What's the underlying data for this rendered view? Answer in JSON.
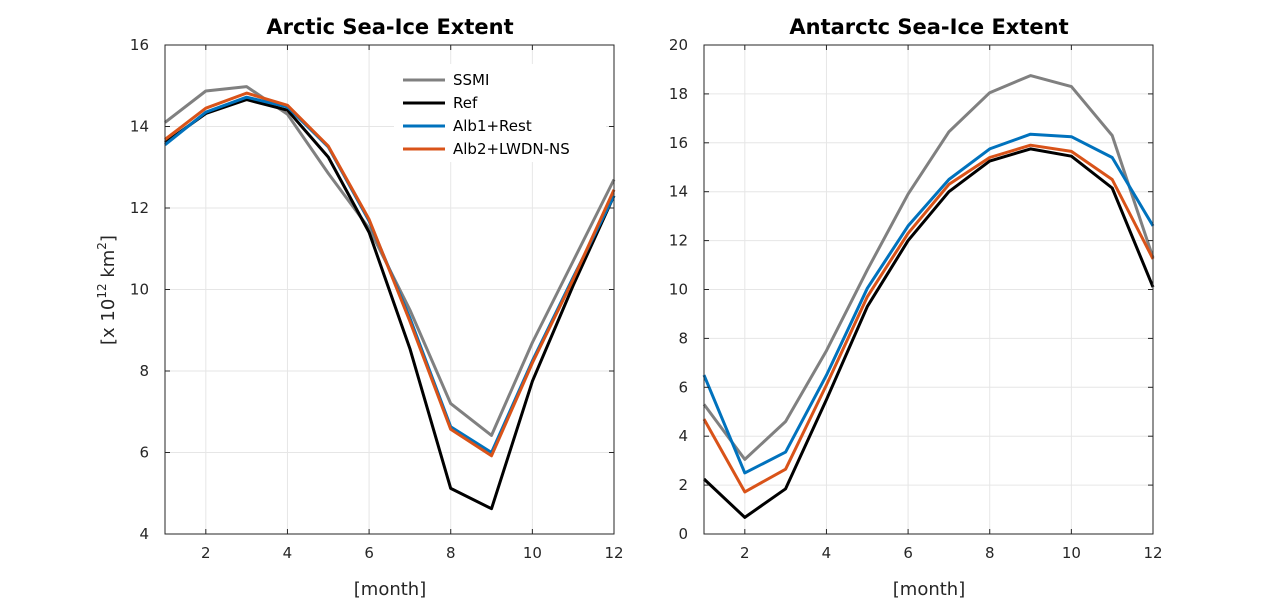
{
  "figure": {
    "ylabel_prefix": "[x 10",
    "ylabel_exp": "12",
    "ylabel_unit": " km",
    "ylabel_unit_exp": "2",
    "ylabel_suffix": "]"
  },
  "chart_data": [
    {
      "type": "line",
      "title": "Arctic Sea-Ice Extent",
      "xlabel": "[month]",
      "ylabel": "[x 10^12 km^2]",
      "xlim": [
        1,
        12
      ],
      "ylim": [
        4,
        16
      ],
      "xticks": [
        2,
        4,
        6,
        8,
        10,
        12
      ],
      "yticks": [
        4,
        6,
        8,
        10,
        12,
        14,
        16
      ],
      "grid": true,
      "legend": "top-right",
      "x": [
        1,
        2,
        3,
        4,
        5,
        6,
        7,
        8,
        9,
        10,
        11,
        12
      ],
      "series": [
        {
          "name": "SSMI",
          "color": "#808080",
          "values": [
            14.1,
            14.87,
            14.98,
            14.3,
            12.85,
            11.5,
            9.5,
            7.2,
            6.42,
            8.7,
            10.7,
            12.7
          ]
        },
        {
          "name": "Ref",
          "color": "#000000",
          "values": [
            13.6,
            14.32,
            14.66,
            14.4,
            13.25,
            11.4,
            8.55,
            5.12,
            4.62,
            7.75,
            10.1,
            12.3
          ]
        },
        {
          "name": "Alb1+Rest",
          "color": "#0072BD",
          "values": [
            13.55,
            14.35,
            14.72,
            14.48,
            13.5,
            11.68,
            9.3,
            6.63,
            6.0,
            8.25,
            10.3,
            12.3
          ]
        },
        {
          "name": "Alb2+LWDN-NS",
          "color": "#D95319",
          "values": [
            13.68,
            14.45,
            14.82,
            14.52,
            13.52,
            11.72,
            9.22,
            6.57,
            5.92,
            8.2,
            10.25,
            12.45
          ]
        }
      ]
    },
    {
      "type": "line",
      "title": "Antarctc Sea-Ice Extent",
      "xlabel": "[month]",
      "xlim": [
        1,
        12
      ],
      "ylim": [
        0,
        20
      ],
      "xticks": [
        2,
        4,
        6,
        8,
        10,
        12
      ],
      "yticks": [
        0,
        2,
        4,
        6,
        8,
        10,
        12,
        14,
        16,
        18,
        20
      ],
      "grid": true,
      "x": [
        1,
        2,
        3,
        4,
        5,
        6,
        7,
        8,
        9,
        10,
        11,
        12
      ],
      "series": [
        {
          "name": "SSMI",
          "color": "#808080",
          "values": [
            5.3,
            3.05,
            4.6,
            7.5,
            10.8,
            13.9,
            16.45,
            18.05,
            18.75,
            18.3,
            16.3,
            11.3
          ]
        },
        {
          "name": "Ref",
          "color": "#000000",
          "values": [
            2.25,
            0.68,
            1.85,
            5.5,
            9.3,
            12.0,
            14.0,
            15.25,
            15.75,
            15.45,
            14.15,
            10.1
          ]
        },
        {
          "name": "Alb1+Rest",
          "color": "#0072BD",
          "values": [
            6.5,
            2.5,
            3.35,
            6.5,
            10.05,
            12.6,
            14.5,
            15.75,
            16.35,
            16.25,
            15.4,
            12.6
          ]
        },
        {
          "name": "Alb2+LWDN-NS",
          "color": "#D95319",
          "values": [
            4.7,
            1.72,
            2.65,
            6.1,
            9.7,
            12.3,
            14.3,
            15.4,
            15.9,
            15.65,
            14.5,
            11.25
          ]
        }
      ]
    }
  ]
}
